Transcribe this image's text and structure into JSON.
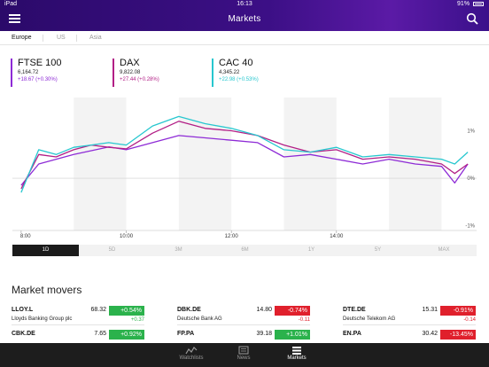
{
  "status_bar": {
    "device": "iPad",
    "time": "16:13",
    "battery": "91%"
  },
  "header": {
    "title": "Markets"
  },
  "regions": [
    {
      "label": "Europe",
      "active": true
    },
    {
      "label": "US",
      "active": false
    },
    {
      "label": "Asia",
      "active": false
    }
  ],
  "indices": [
    {
      "name": "FTSE 100",
      "price": "6,164.72",
      "change": "+18.67 (+0.30%)",
      "color": "#8e2bd6"
    },
    {
      "name": "DAX",
      "price": "9,822.08",
      "change": "+27.44 (+0.28%)",
      "color": "#b21f86"
    },
    {
      "name": "CAC 40",
      "price": "4,345.22",
      "change": "+22.98 (+0.53%)",
      "color": "#27c7cf"
    }
  ],
  "chart_data": {
    "type": "line",
    "x_ticks": [
      "8:00",
      "10:00",
      "12:00",
      "14:00"
    ],
    "y_ticks": [
      "1%",
      "0%",
      "-1%"
    ],
    "ylim": [
      -1.1,
      1.7
    ],
    "x_range_minutes": [
      470,
      1000
    ],
    "series": [
      {
        "name": "FTSE 100",
        "color": "#8e2bd6",
        "x": [
          480,
          500,
          520,
          540,
          560,
          580,
          600,
          630,
          660,
          690,
          720,
          750,
          780,
          810,
          840,
          870,
          900,
          930,
          960,
          975,
          990
        ],
        "y": [
          -0.15,
          0.3,
          0.4,
          0.5,
          0.58,
          0.66,
          0.6,
          0.75,
          0.9,
          0.85,
          0.8,
          0.75,
          0.45,
          0.5,
          0.4,
          0.3,
          0.4,
          0.3,
          0.25,
          -0.1,
          0.3
        ]
      },
      {
        "name": "DAX",
        "color": "#b21f86",
        "x": [
          480,
          500,
          520,
          540,
          560,
          580,
          600,
          630,
          660,
          690,
          720,
          750,
          780,
          810,
          840,
          870,
          900,
          930,
          960,
          975,
          990
        ],
        "y": [
          -0.22,
          0.5,
          0.45,
          0.6,
          0.7,
          0.65,
          0.62,
          0.95,
          1.2,
          1.05,
          1.0,
          0.9,
          0.7,
          0.55,
          0.6,
          0.4,
          0.45,
          0.4,
          0.3,
          0.1,
          0.3
        ]
      },
      {
        "name": "CAC 40",
        "color": "#27c7cf",
        "x": [
          480,
          500,
          520,
          540,
          560,
          580,
          600,
          630,
          660,
          690,
          720,
          750,
          780,
          810,
          840,
          870,
          900,
          930,
          960,
          975,
          990
        ],
        "y": [
          -0.3,
          0.6,
          0.5,
          0.65,
          0.7,
          0.75,
          0.7,
          1.1,
          1.3,
          1.15,
          1.05,
          0.9,
          0.6,
          0.55,
          0.65,
          0.45,
          0.5,
          0.45,
          0.4,
          0.3,
          0.55
        ]
      }
    ]
  },
  "ranges": [
    {
      "label": "1D",
      "active": true
    },
    {
      "label": "5D",
      "active": false
    },
    {
      "label": "3M",
      "active": false
    },
    {
      "label": "6M",
      "active": false
    },
    {
      "label": "1Y",
      "active": false
    },
    {
      "label": "5Y",
      "active": false
    },
    {
      "label": "MAX",
      "active": false
    }
  ],
  "movers": {
    "title": "Market movers",
    "up_color": "#2bb24c",
    "down_color": "#e0202c",
    "rows": [
      [
        {
          "symbol": "LLOY.L",
          "name": "Lloyds Banking Group plc",
          "price": "68.32",
          "pct": "+0.54%",
          "abs": "+0.37",
          "dir": "up"
        },
        {
          "symbol": "DBK.DE",
          "name": "Deutsche Bank AG",
          "price": "14.80",
          "pct": "-0.74%",
          "abs": "-0.11",
          "dir": "down"
        },
        {
          "symbol": "DTE.DE",
          "name": "Deutsche Telekom AG",
          "price": "15.31",
          "pct": "-0.91%",
          "abs": "-0.14",
          "dir": "down"
        }
      ],
      [
        {
          "symbol": "CBK.DE",
          "name": "",
          "price": "7.65",
          "pct": "+0.92%",
          "abs": "",
          "dir": "up"
        },
        {
          "symbol": "FP.PA",
          "name": "",
          "price": "39.18",
          "pct": "+1.01%",
          "abs": "",
          "dir": "up"
        },
        {
          "symbol": "EN.PA",
          "name": "",
          "price": "30.42",
          "pct": "-13.45%",
          "abs": "",
          "dir": "down"
        }
      ]
    ]
  },
  "tabs": [
    {
      "label": "Watchlists",
      "icon": "watchlist-icon",
      "active": false
    },
    {
      "label": "News",
      "icon": "news-icon",
      "active": false
    },
    {
      "label": "Markets",
      "icon": "markets-icon",
      "active": true
    }
  ]
}
